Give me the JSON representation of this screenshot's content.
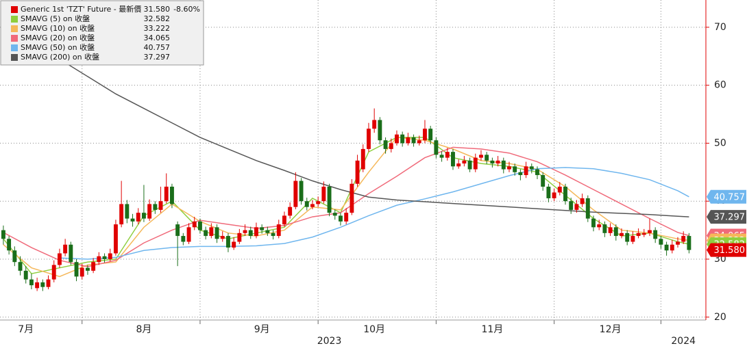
{
  "chart_data": {
    "type": "candlestick",
    "xlim": [
      -0.6,
      125
    ],
    "xticks": [
      {
        "value": 4,
        "label": "7月"
      },
      {
        "value": 25,
        "label": "8月"
      },
      {
        "value": 46,
        "label": "9月"
      },
      {
        "value": 66,
        "label": "10月"
      },
      {
        "value": 87,
        "label": "11月"
      },
      {
        "value": 108,
        "label": "12月"
      }
    ],
    "year_ticks": [
      {
        "value": 58,
        "label": "2023"
      },
      {
        "value": 121,
        "label": "2024"
      }
    ],
    "xgrid": [
      14,
      35,
      56,
      77,
      98,
      117
    ],
    "ylim": [
      19.5,
      74.7
    ],
    "yticks": [
      20,
      30,
      40,
      50,
      60,
      70
    ],
    "grid": true,
    "axis_color": "#e00000",
    "up_color": "#e00000",
    "down_color": "#1a6e1a",
    "series": [
      {
        "name": "Generic 1st 'TZT' Future - 最新價",
        "color": "#e00000",
        "last": {
          "value": 31.58,
          "label": "31.580"
        },
        "change": "-8.60%",
        "ohlc": [
          [
            35.0,
            35.8,
            32.5,
            33.5
          ],
          [
            33.5,
            34.0,
            30.8,
            31.5
          ],
          [
            31.5,
            32.2,
            28.8,
            29.5
          ],
          [
            29.5,
            30.5,
            27.2,
            28.0
          ],
          [
            28.0,
            28.8,
            25.8,
            26.5
          ],
          [
            26.5,
            27.5,
            24.8,
            25.5
          ],
          [
            25.0,
            26.8,
            24.5,
            26.0
          ],
          [
            26.0,
            26.5,
            24.5,
            25.2
          ],
          [
            25.2,
            27.2,
            24.8,
            26.5
          ],
          [
            26.5,
            29.8,
            26.0,
            29.0
          ],
          [
            29.0,
            31.8,
            28.5,
            31.0
          ],
          [
            31.0,
            33.5,
            30.5,
            32.5
          ],
          [
            32.5,
            33.0,
            29.0,
            29.5
          ],
          [
            29.5,
            30.0,
            26.2,
            27.0
          ],
          [
            27.0,
            29.2,
            26.5,
            28.5
          ],
          [
            28.5,
            29.0,
            27.3,
            28.0
          ],
          [
            28.0,
            30.2,
            27.6,
            29.5
          ],
          [
            29.5,
            31.2,
            29.0,
            30.5
          ],
          [
            30.5,
            31.0,
            29.4,
            30.0
          ],
          [
            30.0,
            31.8,
            29.6,
            31.0
          ],
          [
            31.0,
            36.8,
            30.6,
            36.0
          ],
          [
            36.0,
            43.5,
            35.5,
            39.5
          ],
          [
            39.5,
            40.2,
            36.2,
            37.0
          ],
          [
            37.0,
            37.8,
            35.6,
            36.5
          ],
          [
            36.5,
            38.8,
            36.0,
            38.0
          ],
          [
            38.0,
            42.8,
            36.4,
            37.0
          ],
          [
            37.0,
            40.3,
            36.6,
            39.5
          ],
          [
            39.5,
            40.0,
            37.8,
            38.5
          ],
          [
            38.5,
            42.5,
            38.0,
            40.0
          ],
          [
            40.0,
            44.8,
            39.6,
            42.5
          ],
          [
            42.5,
            43.0,
            38.8,
            39.5
          ],
          [
            36.0,
            36.5,
            28.8,
            34.0
          ],
          [
            34.0,
            34.5,
            32.4,
            33.0
          ],
          [
            33.0,
            36.2,
            32.6,
            35.5
          ],
          [
            35.5,
            37.3,
            35.0,
            36.5
          ],
          [
            36.5,
            37.0,
            34.4,
            35.0
          ],
          [
            35.0,
            35.6,
            33.4,
            34.0
          ],
          [
            34.0,
            36.2,
            33.6,
            35.5
          ],
          [
            35.5,
            36.0,
            32.8,
            33.5
          ],
          [
            33.5,
            34.8,
            33.0,
            34.0
          ],
          [
            34.0,
            34.5,
            31.2,
            32.0
          ],
          [
            32.0,
            33.8,
            31.6,
            33.0
          ],
          [
            33.0,
            35.2,
            32.6,
            34.5
          ],
          [
            34.5,
            36.0,
            34.0,
            35.0
          ],
          [
            35.0,
            35.6,
            33.5,
            34.0
          ],
          [
            34.0,
            36.3,
            33.6,
            35.5
          ],
          [
            35.5,
            36.0,
            34.4,
            35.0
          ],
          [
            35.0,
            35.6,
            34.0,
            34.5
          ],
          [
            34.5,
            35.0,
            33.4,
            34.0
          ],
          [
            34.0,
            36.8,
            33.6,
            36.0
          ],
          [
            36.0,
            38.2,
            35.6,
            37.5
          ],
          [
            37.5,
            39.8,
            37.0,
            39.0
          ],
          [
            39.0,
            45.0,
            38.6,
            43.5
          ],
          [
            43.5,
            44.0,
            39.4,
            40.0
          ],
          [
            40.0,
            40.6,
            38.4,
            39.0
          ],
          [
            39.0,
            40.2,
            38.6,
            39.5
          ],
          [
            39.5,
            40.8,
            39.0,
            40.0
          ],
          [
            40.0,
            43.4,
            39.6,
            42.5
          ],
          [
            42.5,
            43.0,
            37.4,
            38.0
          ],
          [
            38.0,
            38.6,
            36.8,
            37.5
          ],
          [
            37.5,
            38.0,
            35.8,
            36.5
          ],
          [
            36.5,
            38.8,
            36.0,
            38.0
          ],
          [
            38.0,
            43.8,
            37.6,
            43.0
          ],
          [
            43.0,
            48.0,
            42.5,
            47.0
          ],
          [
            45.5,
            49.8,
            45.0,
            49.0
          ],
          [
            49.0,
            53.5,
            48.5,
            52.5
          ],
          [
            52.5,
            56.0,
            51.8,
            54.0
          ],
          [
            54.0,
            54.5,
            49.8,
            50.5
          ],
          [
            50.5,
            51.0,
            48.2,
            49.0
          ],
          [
            49.0,
            50.8,
            48.4,
            50.0
          ],
          [
            50.0,
            52.2,
            49.6,
            51.5
          ],
          [
            51.5,
            52.0,
            49.4,
            50.0
          ],
          [
            50.0,
            51.8,
            49.6,
            51.0
          ],
          [
            51.0,
            51.5,
            49.4,
            50.0
          ],
          [
            50.0,
            51.3,
            49.6,
            50.5
          ],
          [
            50.5,
            54.0,
            50.0,
            52.5
          ],
          [
            52.5,
            53.0,
            49.8,
            50.5
          ],
          [
            50.5,
            51.0,
            47.4,
            48.0
          ],
          [
            48.0,
            48.6,
            46.8,
            47.5
          ],
          [
            47.5,
            49.2,
            47.0,
            48.5
          ],
          [
            48.5,
            49.0,
            45.4,
            46.0
          ],
          [
            46.0,
            47.2,
            45.6,
            46.5
          ],
          [
            46.5,
            47.8,
            46.0,
            47.0
          ],
          [
            47.0,
            47.5,
            45.0,
            45.5
          ],
          [
            45.5,
            48.2,
            45.0,
            47.5
          ],
          [
            47.5,
            48.8,
            47.0,
            48.0
          ],
          [
            48.0,
            48.5,
            46.4,
            47.0
          ],
          [
            47.0,
            47.5,
            45.8,
            46.5
          ],
          [
            46.5,
            47.8,
            46.0,
            47.0
          ],
          [
            47.0,
            47.5,
            44.8,
            45.5
          ],
          [
            45.5,
            46.8,
            45.0,
            46.0
          ],
          [
            46.0,
            46.5,
            44.4,
            45.0
          ],
          [
            45.0,
            45.5,
            43.6,
            44.5
          ],
          [
            44.5,
            46.8,
            44.0,
            46.0
          ],
          [
            46.0,
            46.5,
            44.8,
            45.5
          ],
          [
            45.5,
            46.0,
            43.8,
            44.5
          ],
          [
            44.5,
            45.0,
            41.8,
            42.5
          ],
          [
            42.5,
            43.0,
            39.8,
            40.5
          ],
          [
            40.5,
            42.2,
            40.0,
            41.5
          ],
          [
            41.5,
            43.3,
            41.0,
            42.5
          ],
          [
            42.5,
            43.0,
            39.4,
            40.0
          ],
          [
            40.0,
            40.6,
            37.8,
            38.5
          ],
          [
            38.5,
            40.2,
            38.0,
            39.5
          ],
          [
            39.5,
            41.3,
            39.0,
            40.5
          ],
          [
            40.5,
            41.0,
            36.4,
            37.0
          ],
          [
            37.0,
            37.5,
            34.8,
            35.5
          ],
          [
            35.5,
            36.8,
            35.0,
            36.0
          ],
          [
            36.0,
            36.5,
            33.8,
            34.5
          ],
          [
            34.5,
            36.2,
            34.0,
            35.5
          ],
          [
            35.5,
            36.0,
            33.2,
            34.0
          ],
          [
            34.0,
            35.3,
            33.6,
            34.5
          ],
          [
            34.5,
            35.0,
            32.4,
            33.0
          ],
          [
            33.0,
            34.8,
            32.6,
            34.0
          ],
          [
            34.0,
            35.3,
            33.6,
            34.5
          ],
          [
            34.2,
            35.2,
            33.8,
            34.5
          ],
          [
            34.5,
            37.0,
            34.0,
            35.0
          ],
          [
            35.0,
            35.5,
            32.8,
            33.5
          ],
          [
            33.5,
            34.0,
            31.8,
            32.5
          ],
          [
            32.5,
            33.0,
            30.6,
            31.5
          ],
          [
            31.5,
            33.3,
            31.0,
            32.5
          ],
          [
            32.5,
            33.8,
            32.0,
            33.0
          ],
          [
            33.0,
            34.8,
            32.6,
            34.0
          ],
          [
            34.0,
            34.5,
            31.0,
            31.58
          ]
        ]
      },
      {
        "name": "SMAVG (5)  on 收盤",
        "color": "#8fce3f",
        "last": 32.582,
        "x": [
          0,
          5,
          10,
          15,
          20,
          25,
          30,
          35,
          40,
          45,
          50,
          55,
          60,
          65,
          70,
          75,
          80,
          85,
          90,
          95,
          100,
          105,
          110,
          115,
          120,
          122
        ],
        "values": [
          33.5,
          27.5,
          28.5,
          29.5,
          30.0,
          37.5,
          40.0,
          35.0,
          33.5,
          34.5,
          35.5,
          40.5,
          38.0,
          48.5,
          51.0,
          51.0,
          47.5,
          46.5,
          46.0,
          45.0,
          41.0,
          37.0,
          34.0,
          34.5,
          33.0,
          32.582
        ]
      },
      {
        "name": "SMAVG (10)  on 收盤",
        "color": "#f5b85a",
        "last": 33.222,
        "x": [
          0,
          5,
          10,
          15,
          20,
          25,
          30,
          35,
          40,
          45,
          50,
          55,
          60,
          65,
          70,
          75,
          80,
          85,
          90,
          95,
          100,
          105,
          110,
          115,
          120,
          122
        ],
        "values": [
          32.5,
          28.5,
          27.0,
          29.0,
          29.5,
          35.5,
          39.5,
          36.5,
          34.5,
          34.0,
          35.0,
          39.0,
          38.5,
          45.0,
          51.0,
          50.5,
          49.0,
          47.0,
          46.5,
          45.5,
          42.5,
          38.5,
          35.0,
          34.5,
          33.5,
          33.222
        ]
      },
      {
        "name": "SMAVG (20)  on 收盤",
        "color": "#f06a7a",
        "last": 34.065,
        "x": [
          0,
          5,
          10,
          15,
          20,
          25,
          30,
          35,
          40,
          45,
          50,
          55,
          60,
          65,
          70,
          75,
          80,
          85,
          90,
          95,
          100,
          105,
          110,
          115,
          120,
          122
        ],
        "values": [
          34.6,
          32.0,
          29.8,
          28.7,
          29.8,
          32.8,
          35.0,
          36.7,
          36.0,
          35.3,
          35.8,
          37.3,
          38.0,
          41.3,
          44.3,
          47.5,
          49.3,
          49.0,
          48.3,
          46.8,
          44.5,
          42.0,
          39.5,
          37.0,
          34.6,
          34.065
        ]
      },
      {
        "name": "SMAVG (50)  on 收盤",
        "color": "#6fb6ee",
        "last": 40.757,
        "x": [
          0,
          5,
          10,
          15,
          20,
          25,
          30,
          35,
          40,
          45,
          50,
          55,
          60,
          65,
          70,
          75,
          80,
          85,
          90,
          95,
          100,
          105,
          110,
          115,
          120,
          122
        ],
        "values": [
          null,
          null,
          30.2,
          30.0,
          30.3,
          31.5,
          32.0,
          32.2,
          32.2,
          32.3,
          32.7,
          33.8,
          35.5,
          37.5,
          39.3,
          40.4,
          41.6,
          43.0,
          44.4,
          45.6,
          45.8,
          45.6,
          44.8,
          43.7,
          41.8,
          40.757
        ]
      },
      {
        "name": "SMAVG (200)  on 收盤",
        "color": "#555555",
        "last": 37.297,
        "x": [
          0,
          5,
          10,
          15,
          20,
          25,
          30,
          35,
          40,
          45,
          50,
          55,
          60,
          65,
          70,
          75,
          80,
          85,
          90,
          95,
          100,
          105,
          110,
          115,
          120,
          122
        ],
        "values": [
          70.5,
          67.5,
          64.5,
          61.5,
          58.5,
          56.0,
          53.5,
          51.0,
          49.0,
          47.0,
          45.3,
          43.5,
          42.0,
          40.7,
          40.2,
          39.9,
          39.6,
          39.3,
          39.0,
          38.7,
          38.4,
          38.1,
          37.9,
          37.7,
          37.4,
          37.297
        ]
      }
    ]
  }
}
